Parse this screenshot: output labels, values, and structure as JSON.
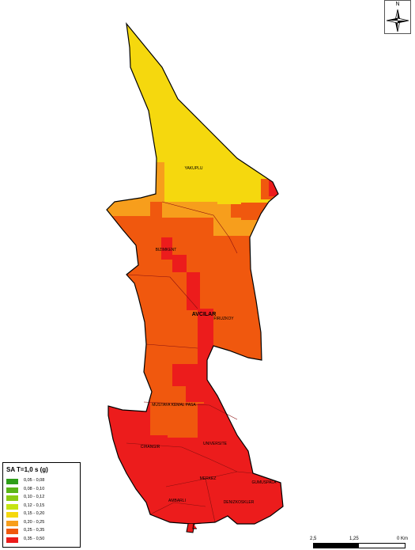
{
  "legend": {
    "title": "SA  T=1,0 s (g)",
    "classes": [
      {
        "label": "0,05 - 0,08",
        "color": "#2e9e19"
      },
      {
        "label": "0,08 - 0,10",
        "color": "#5ab517"
      },
      {
        "label": "0,10 - 0,12",
        "color": "#8ccc14"
      },
      {
        "label": "0,12 - 0,15",
        "color": "#c6e413"
      },
      {
        "label": "0,15 - 0,20",
        "color": "#f5d80e"
      },
      {
        "label": "0,20 - 0,25",
        "color": "#f79e1c"
      },
      {
        "label": "0,25 - 0,35",
        "color": "#f0580e"
      },
      {
        "label": "0,35 - 0,50",
        "color": "#ec1c1c"
      }
    ]
  },
  "north_arrow": {
    "letter": "N",
    "icon": "north-arrow-icon"
  },
  "scale_bar": {
    "labels": [
      "2,5",
      "1,25",
      "0 Km"
    ]
  },
  "neighborhoods": {
    "yakuplu": "YAKUPLU",
    "bizim_kent": "BIZIMKENT",
    "avcilar": "AVCILAR",
    "firuzkoy": "FIRUZKOY",
    "mustafa_kemal_pasa": "MUSTAFA KEMAL PASA",
    "universite": "UNIVERSITE",
    "cihangir": "CIHANGIR",
    "merkez": "MERKEZ",
    "gumuspala": "GUMUSPALA",
    "ambarli": "AMBARLI",
    "denizkosklar": "DENIZKOSKLER"
  }
}
